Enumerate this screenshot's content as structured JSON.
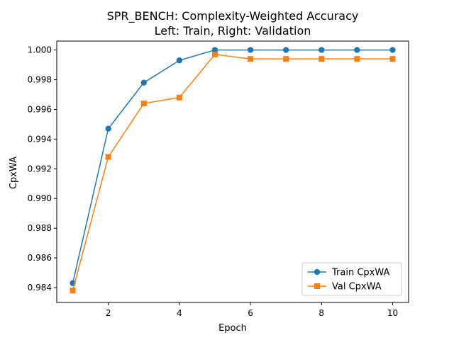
{
  "chart_data": {
    "type": "line",
    "title": "SPR_BENCH: Complexity-Weighted Accuracy",
    "subtitle": "Left: Train, Right: Validation",
    "xlabel": "Epoch",
    "ylabel": "CpxWA",
    "x": [
      1,
      2,
      3,
      4,
      5,
      6,
      7,
      8,
      9,
      10
    ],
    "xlim": [
      0.55,
      10.45
    ],
    "ylim": [
      0.983,
      1.0006
    ],
    "xticks": [
      2,
      4,
      6,
      8,
      10
    ],
    "yticks": [
      0.984,
      0.986,
      0.988,
      0.99,
      0.992,
      0.994,
      0.996,
      0.998,
      1.0
    ],
    "ytick_labels": [
      "0.984",
      "0.986",
      "0.988",
      "0.990",
      "0.992",
      "0.994",
      "0.996",
      "0.998",
      "1.000"
    ],
    "grid": false,
    "legend_position": "lower-right",
    "series": [
      {
        "name": "Train CpxWA",
        "color": "#1f77b4",
        "marker": "circle",
        "values": [
          0.9843,
          0.9947,
          0.9978,
          0.9993,
          1.0,
          1.0,
          1.0,
          1.0,
          1.0,
          1.0
        ]
      },
      {
        "name": "Val CpxWA",
        "color": "#ff7f0e",
        "marker": "square",
        "values": [
          0.9838,
          0.9928,
          0.9964,
          0.9968,
          0.9997,
          0.9994,
          0.9994,
          0.9994,
          0.9994,
          0.9994
        ]
      }
    ]
  }
}
